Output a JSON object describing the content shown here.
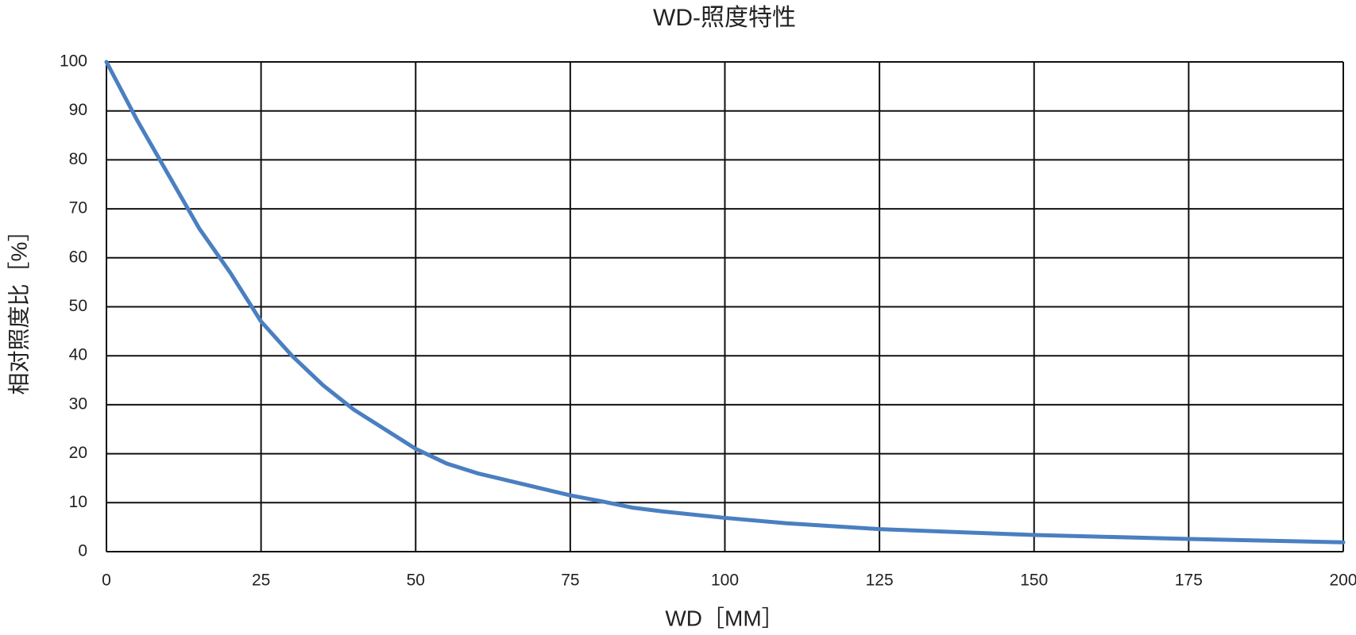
{
  "chart_data": {
    "type": "line",
    "title": "WD-照度特性",
    "x_label": "WD［MM］",
    "y_label": "相对照度比［%］",
    "x": [
      0,
      5,
      10,
      15,
      20,
      25,
      30,
      35,
      40,
      45,
      50,
      55,
      60,
      65,
      70,
      75,
      80,
      85,
      90,
      100,
      110,
      125,
      150,
      175,
      200
    ],
    "series": [
      {
        "name": "相对照度比",
        "color": "#4a7fc1",
        "values": [
          100,
          88,
          77,
          66,
          57,
          47,
          40,
          34,
          29,
          25,
          21,
          18,
          16,
          14.5,
          13,
          11.5,
          10.3,
          9,
          8.2,
          6.9,
          5.8,
          4.6,
          3.4,
          2.6,
          1.9
        ]
      }
    ],
    "xlim": [
      0,
      200
    ],
    "xticks": [
      0,
      25,
      50,
      75,
      100,
      125,
      150,
      175,
      200
    ],
    "ylim": [
      0,
      100
    ],
    "yticks": [
      0,
      10,
      20,
      30,
      40,
      50,
      60,
      70,
      80,
      90,
      100
    ],
    "grid": true
  }
}
